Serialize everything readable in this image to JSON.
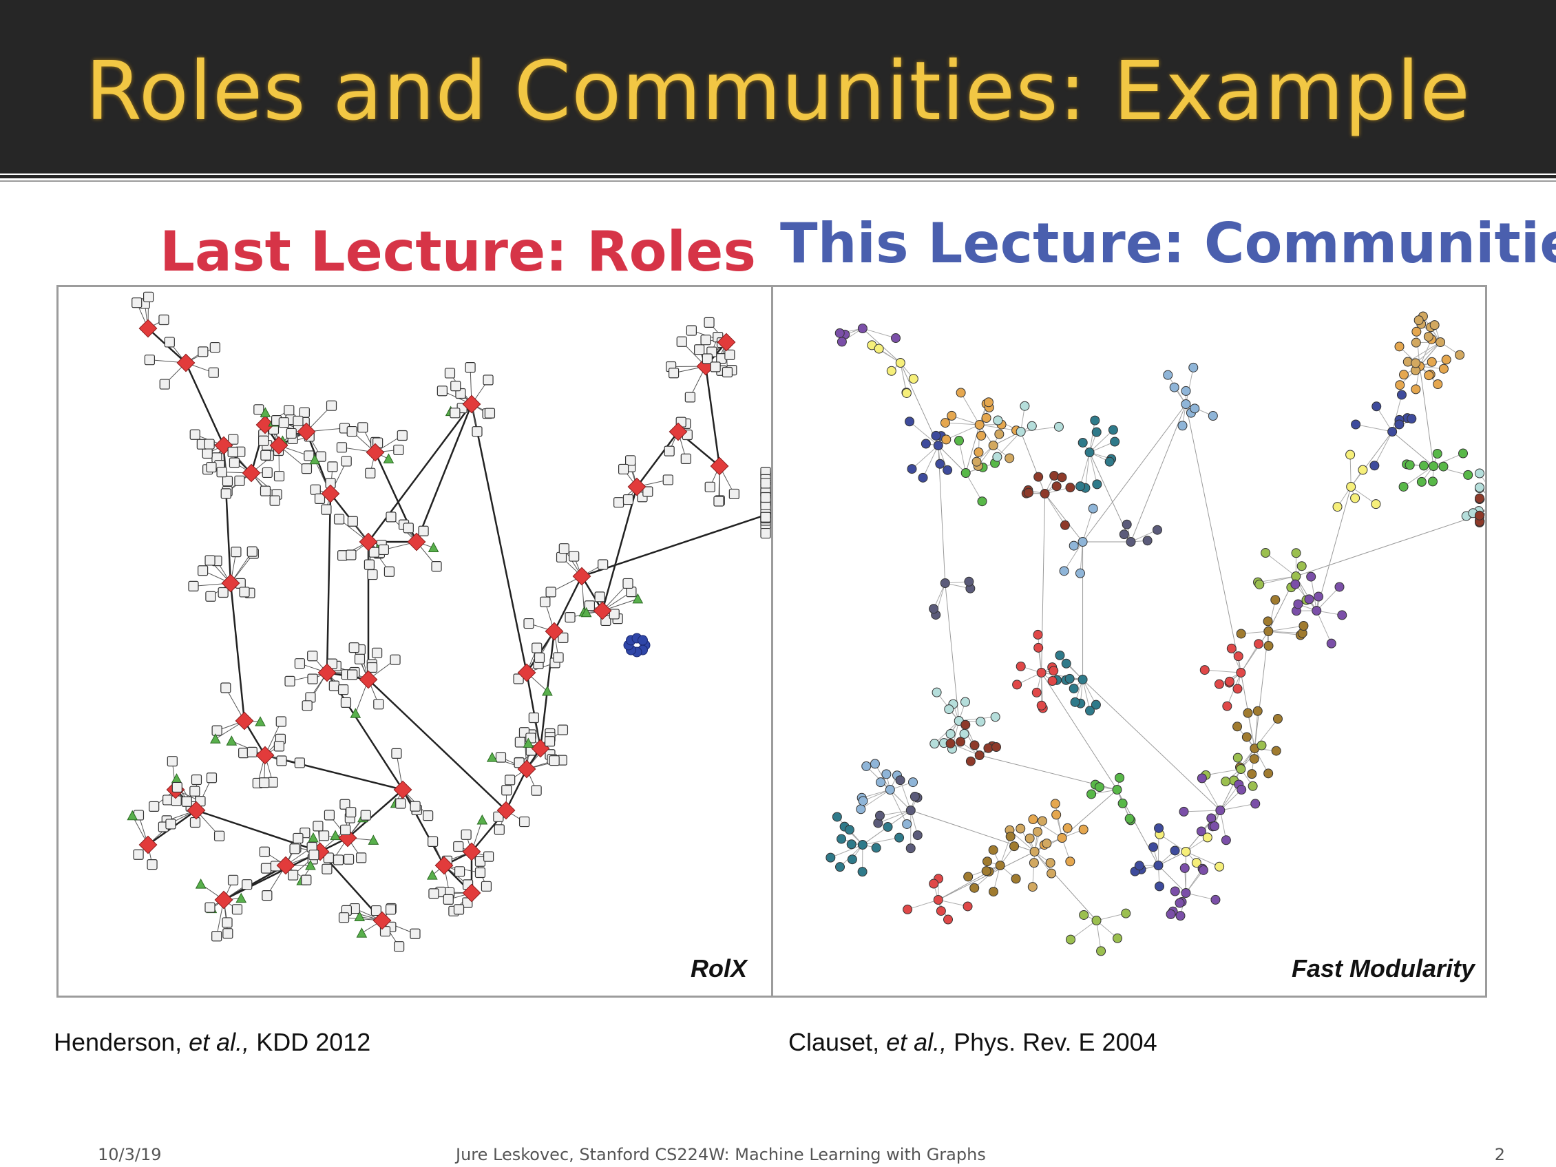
{
  "title": "Roles and Communities: Example",
  "left_heading": "Last Lecture: Roles",
  "right_heading": "This Lecture: Communities",
  "left_panel_label": "RolX",
  "right_panel_label": "Fast Modularity",
  "left_citation": {
    "authors": "Henderson, ",
    "etal": "et al.,",
    "venue": " KDD 2012"
  },
  "right_citation": {
    "authors": "Clauset, ",
    "etal": "et al.,",
    "venue": " Phys. Rev. E 2004"
  },
  "footer": {
    "date": "10/3/19",
    "course": "Jure Leskovec, Stanford CS224W: Machine Learning with Graphs",
    "page": "2"
  },
  "colors": {
    "title_bar": "#262626",
    "title_text": "#f2c744",
    "roles_heading": "#d63447",
    "communities_heading": "#4a5fae",
    "role_hub": "#e23b3b",
    "role_periphery": "#f0f0f0",
    "role_bridge": "#59b04c",
    "role_clique": "#2f46a8"
  },
  "community_palette": [
    "#7b4fa8",
    "#f6ef7a",
    "#3e4b9c",
    "#58b848",
    "#e5a74f",
    "#d2a860",
    "#b5dedb",
    "#8e3a2a",
    "#8fb5d8",
    "#5b5b7a",
    "#2f7a8a",
    "#e04848",
    "#a07b2f",
    "#9bbf4f"
  ]
}
